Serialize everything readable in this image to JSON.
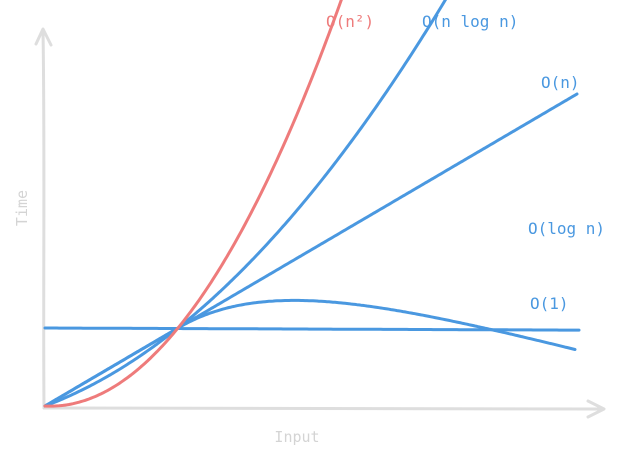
{
  "chart_data": {
    "type": "line",
    "title": "",
    "xlabel": "Input",
    "ylabel": "Time",
    "grid": false,
    "legend": "none",
    "colors": {
      "axis": "#dedede",
      "axis_text": "#d4d4d4",
      "blue": "#4a98e0",
      "red": "#ee7b7b"
    },
    "series": [
      {
        "name": "O(1)",
        "color": "#4a98e0",
        "kind": "const"
      },
      {
        "name": "O(log n)",
        "color": "#4a98e0",
        "kind": "log"
      },
      {
        "name": "O(n)",
        "color": "#4a98e0",
        "kind": "linear"
      },
      {
        "name": "O(n log n)",
        "color": "#4a98e0",
        "kind": "nlogn"
      },
      {
        "name": "O(n²)",
        "color": "#ee7b7b",
        "kind": "quad"
      }
    ]
  }
}
